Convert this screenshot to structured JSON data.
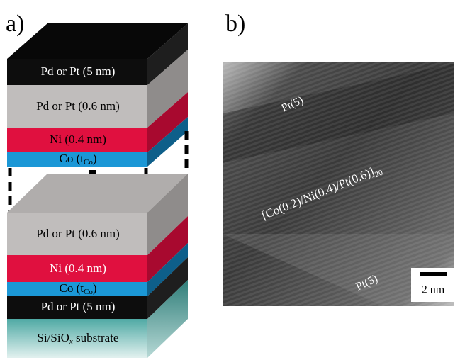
{
  "panels": {
    "a": "a)",
    "b": "b)"
  },
  "stack": {
    "upper": {
      "pd_thick": "Pd or Pt (5 nm)",
      "pd_thin": "Pd or Pt (0.6 nm)",
      "ni": "Ni (0.4 nm)",
      "co": {
        "text": "Co (t",
        "sub": "Co",
        "tail": ")"
      }
    },
    "lower": {
      "pd_thin": "Pd or Pt (0.6 nm)",
      "ni": "Ni (0.4 nm)",
      "co": {
        "text": "Co (t",
        "sub": "Co",
        "tail": ")"
      },
      "pd_thick": "Pd or Pt (5 nm)",
      "substrate": {
        "text": "Si/SiO",
        "sub": "x",
        "tail": " substrate"
      }
    }
  },
  "tem": {
    "top_label": "Pt(5)",
    "multilayer": {
      "text": "[Co(0.2)/Ni(0.4)/Pt(0.6)]",
      "sub": "20"
    },
    "bottom_label": "Pt(5)",
    "scale_bar": "2 nm"
  }
}
